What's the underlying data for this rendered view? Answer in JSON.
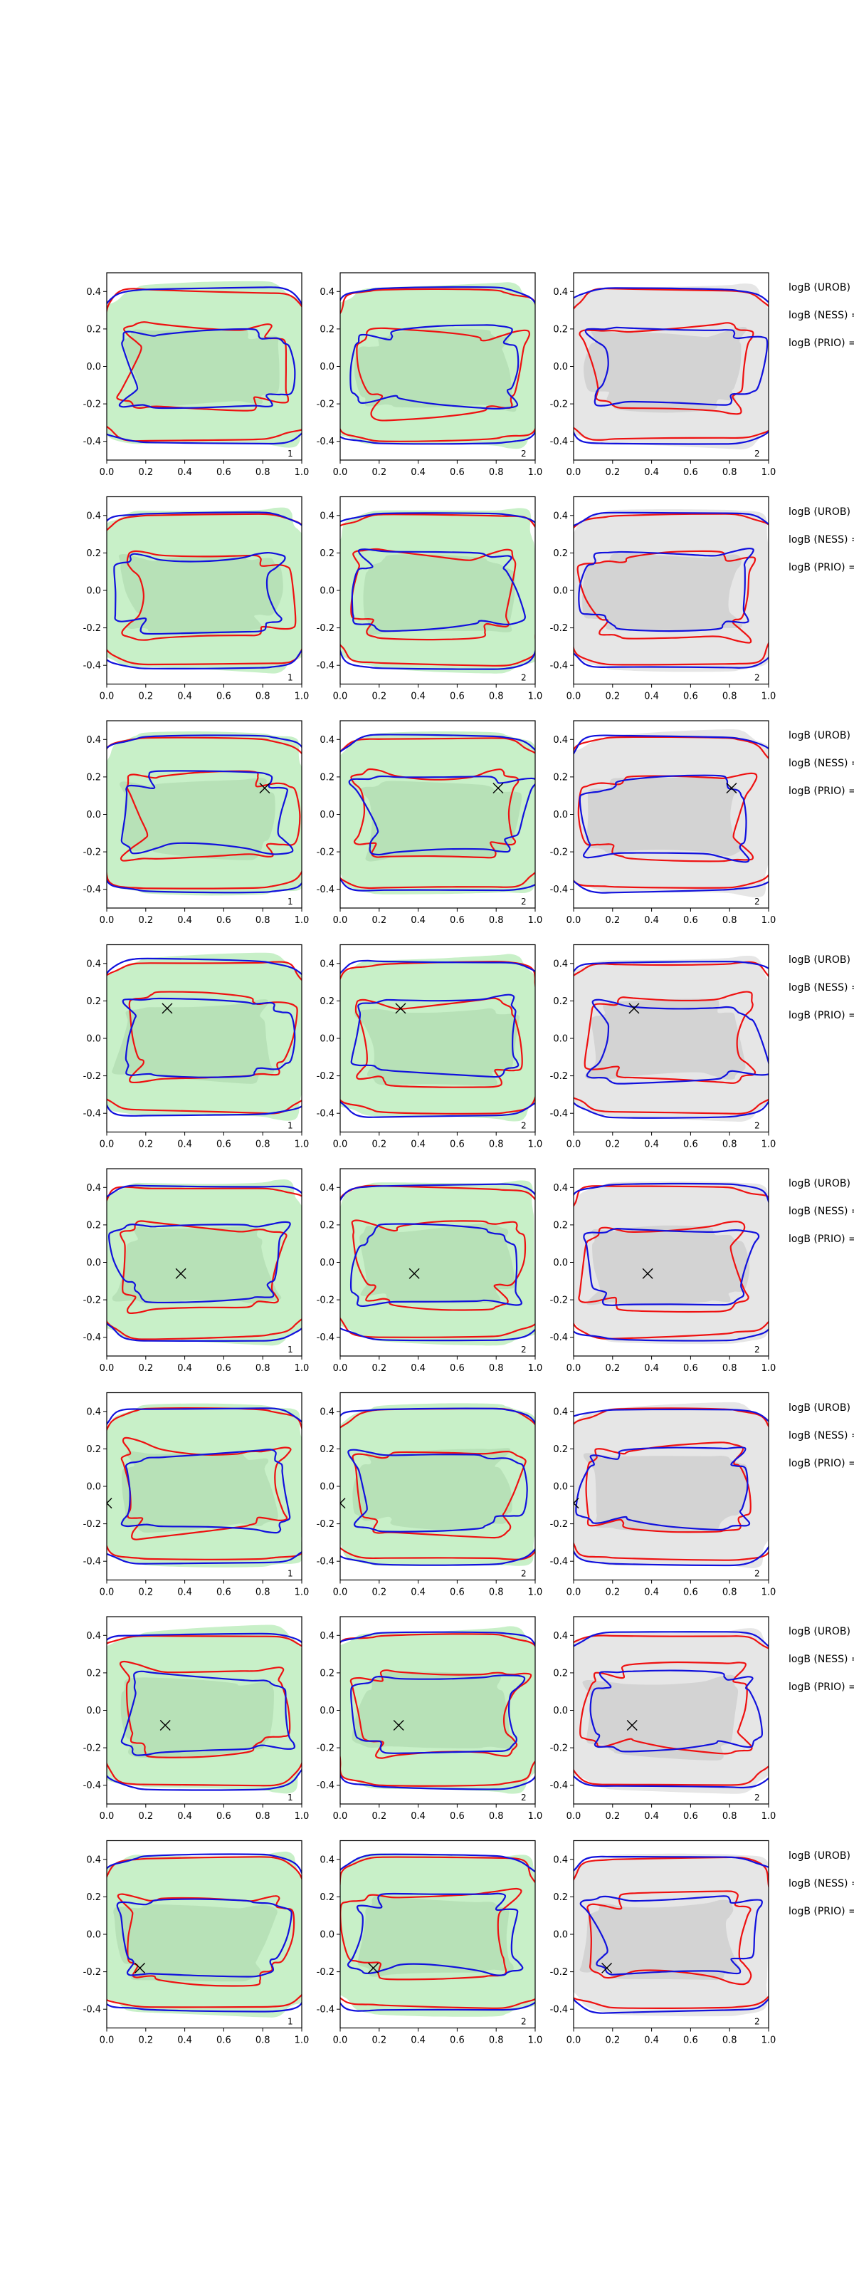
{
  "colors": {
    "posterior_fill": "#c8f0c8",
    "posterior_fill_inner": "#b4deb4",
    "prior_fill": "#e6e6e6",
    "prior_fill_inner": "#cfcfcf",
    "contour_red": "#ee1111",
    "contour_blue": "#1111dd",
    "axis": "#000000"
  },
  "chart_data": {
    "type": "grid of 2D contour plots",
    "rows": 8,
    "cols": 3,
    "xlim": [
      0.0,
      1.0
    ],
    "ylim": [
      -0.5,
      0.5
    ],
    "xticks": [
      "0.0",
      "0.2",
      "0.4",
      "0.6",
      "0.8",
      "1.0"
    ],
    "yticks": [
      "0.4",
      "0.2",
      "0.0",
      "-0.2",
      "-0.4"
    ],
    "panel_fill": [
      "green",
      "green",
      "gray"
    ],
    "panel_corner_labels": [
      [
        "1",
        "2",
        "2"
      ],
      [
        "1",
        "2",
        "2"
      ],
      [
        "1",
        "2",
        "2"
      ],
      [
        "1",
        "2",
        "2"
      ],
      [
        "1",
        "2",
        "2"
      ],
      [
        "1",
        "2",
        "2"
      ],
      [
        "1",
        "2",
        "2"
      ],
      [
        "1",
        "2",
        "2"
      ]
    ],
    "true_points": [
      null,
      null,
      {
        "x": 0.81,
        "y": 0.14
      },
      {
        "x": 0.31,
        "y": 0.16
      },
      {
        "x": 0.38,
        "y": -0.06
      },
      {
        "x": 0.0,
        "y": -0.09
      },
      {
        "x": 0.3,
        "y": -0.08
      },
      {
        "x": 0.17,
        "y": -0.18
      }
    ],
    "row_annotations": [
      [
        "logB (UROB) =",
        "logB (NESS) =",
        "logB (PRIO) ="
      ],
      [
        "logB (UROB) =",
        "logB (NESS) =",
        "logB (PRIO) ="
      ],
      [
        "logB (UROB) =",
        "logB (NESS) =",
        "logB (PRIO) ="
      ],
      [
        "logB (UROB) =",
        "logB (NESS) =",
        "logB (PRIO) ="
      ],
      [
        "logB (UROB) =",
        "logB (NESS) =",
        "logB (PRIO) ="
      ],
      [
        "logB (UROB) =",
        "logB (NESS) =",
        "logB (PRIO) ="
      ],
      [
        "logB (UROB) =",
        "logB (NESS) =",
        "logB (PRIO) ="
      ],
      [
        "logB (UROB) =",
        "logB (NESS) =",
        "logB (PRIO) ="
      ]
    ]
  }
}
